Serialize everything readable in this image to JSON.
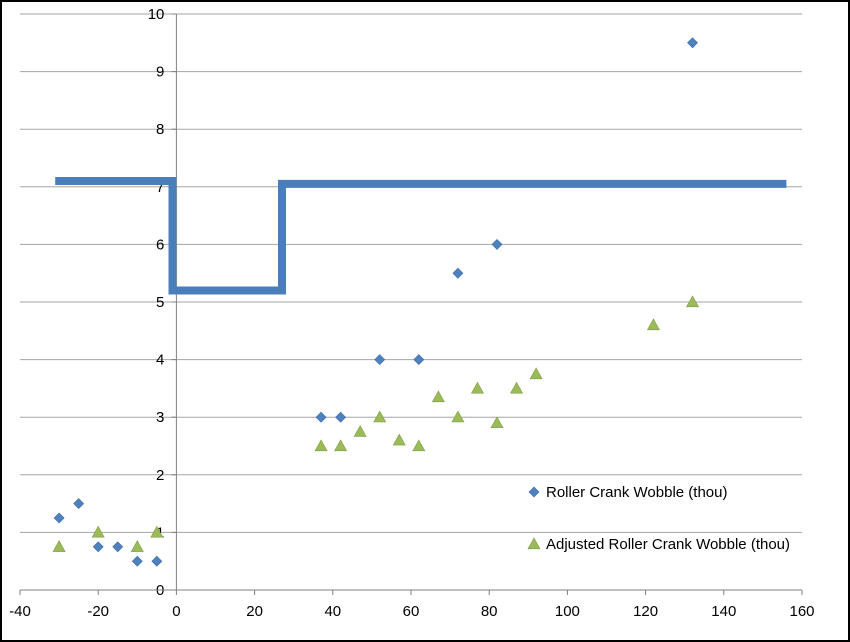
{
  "chart_data": {
    "type": "scatter",
    "title": "",
    "xlabel": "",
    "ylabel": "",
    "xlim": [
      -40,
      160
    ],
    "ylim": [
      0,
      10
    ],
    "x_ticks": [
      -40,
      -20,
      0,
      20,
      40,
      60,
      80,
      100,
      120,
      140,
      160
    ],
    "y_ticks": [
      0,
      1,
      2,
      3,
      4,
      5,
      6,
      7,
      8,
      9,
      10
    ],
    "grid": "horizontal",
    "legend_position": "bottom-right",
    "series": [
      {
        "name": "Roller Crank Wobble (thou)",
        "marker": "diamond",
        "color": "#4f81bd",
        "points": [
          [
            -30,
            1.25
          ],
          [
            -25,
            1.5
          ],
          [
            -20,
            0.75
          ],
          [
            -15,
            0.75
          ],
          [
            -10,
            0.5
          ],
          [
            -5,
            0.5
          ],
          [
            37,
            3.0
          ],
          [
            42,
            3.0
          ],
          [
            52,
            4.0
          ],
          [
            62,
            4.0
          ],
          [
            72,
            5.5
          ],
          [
            82,
            6.0
          ],
          [
            132,
            9.5
          ]
        ]
      },
      {
        "name": "Adjusted Roller Crank Wobble (thou)",
        "marker": "triangle",
        "color": "#9bbb59",
        "points": [
          [
            -30,
            0.75
          ],
          [
            -20,
            1.0
          ],
          [
            -10,
            0.75
          ],
          [
            -5,
            1.0
          ],
          [
            37,
            2.5
          ],
          [
            42,
            2.5
          ],
          [
            47,
            2.75
          ],
          [
            52,
            3.0
          ],
          [
            57,
            2.6
          ],
          [
            62,
            2.5
          ],
          [
            67,
            3.35
          ],
          [
            72,
            3.0
          ],
          [
            77,
            3.5
          ],
          [
            82,
            2.9
          ],
          [
            87,
            3.5
          ],
          [
            92,
            3.75
          ],
          [
            122,
            4.6
          ],
          [
            132,
            5.0
          ]
        ]
      }
    ],
    "limit_line": {
      "color": "#4a7ebb",
      "points": [
        [
          -31,
          7.1
        ],
        [
          -1,
          7.1
        ],
        [
          -1,
          5.2
        ],
        [
          27,
          5.2
        ],
        [
          27,
          7.05
        ],
        [
          156,
          7.05
        ]
      ]
    }
  }
}
